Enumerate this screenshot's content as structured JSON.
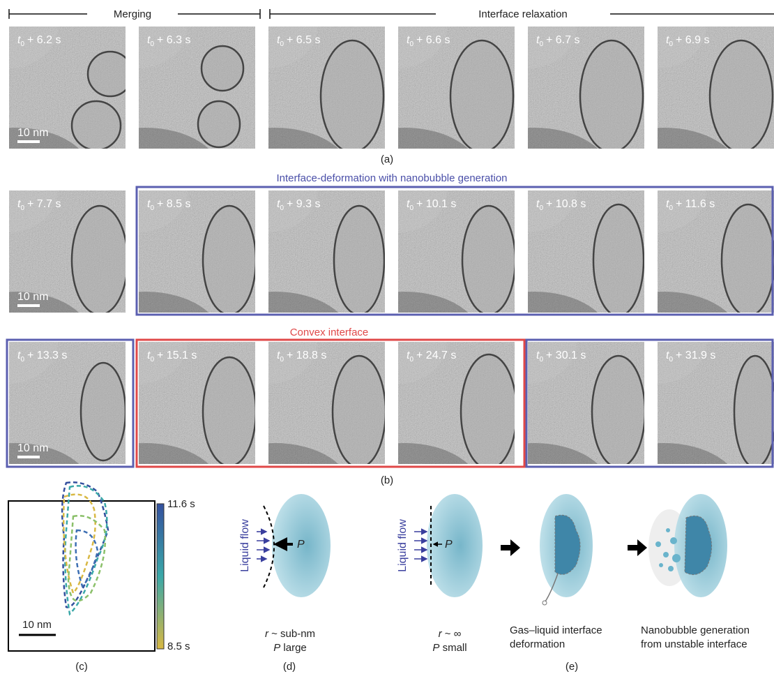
{
  "notation": {
    "time_symbol": "t",
    "time_subscript": "0"
  },
  "panel_a": {
    "groups": [
      "Merging",
      "Interface relaxation"
    ],
    "times": [
      "+ 6.2 s",
      "+ 6.3 s",
      "+ 6.5 s",
      "+ 6.6 s",
      "+ 6.7 s",
      "+ 6.9 s"
    ],
    "scale_bar": "10 nm",
    "label": "(a)"
  },
  "panel_b": {
    "row1_title": "Interface-deformation with nanobubble generation",
    "row1_times": [
      "+ 7.7 s",
      "+ 8.5 s",
      "+ 9.3 s",
      "+ 10.1 s",
      "+ 10.8 s",
      "+ 11.6 s"
    ],
    "row2_title": "Convex interface",
    "row2_times": [
      "+ 13.3 s",
      "+ 15.1 s",
      "+ 18.8 s",
      "+ 24.7 s",
      "+ 30.1 s",
      "+ 31.9 s"
    ],
    "scale_bar": "10 nm",
    "label": "(b)"
  },
  "panel_c": {
    "colorbar_max": "11.6 s",
    "colorbar_min": "8.5 s",
    "scale_bar": "10 nm",
    "label": "(c)"
  },
  "panel_d": {
    "flow_label": "Liquid flow",
    "pressure_symbol": "P",
    "radius_symbol": "r",
    "radius_text": " ~ sub-nm",
    "pressure_text": " large",
    "label": "(d)"
  },
  "panel_e": {
    "flow_label": "Liquid flow",
    "pressure_symbol": "P",
    "radius_symbol": "r",
    "radius_text": " ~ ∞",
    "pressure_text": " small",
    "step2": [
      "Gas–liquid interface",
      "deformation"
    ],
    "step3": [
      "Nanobubble generation",
      "from unstable interface"
    ],
    "label": "(e)"
  }
}
